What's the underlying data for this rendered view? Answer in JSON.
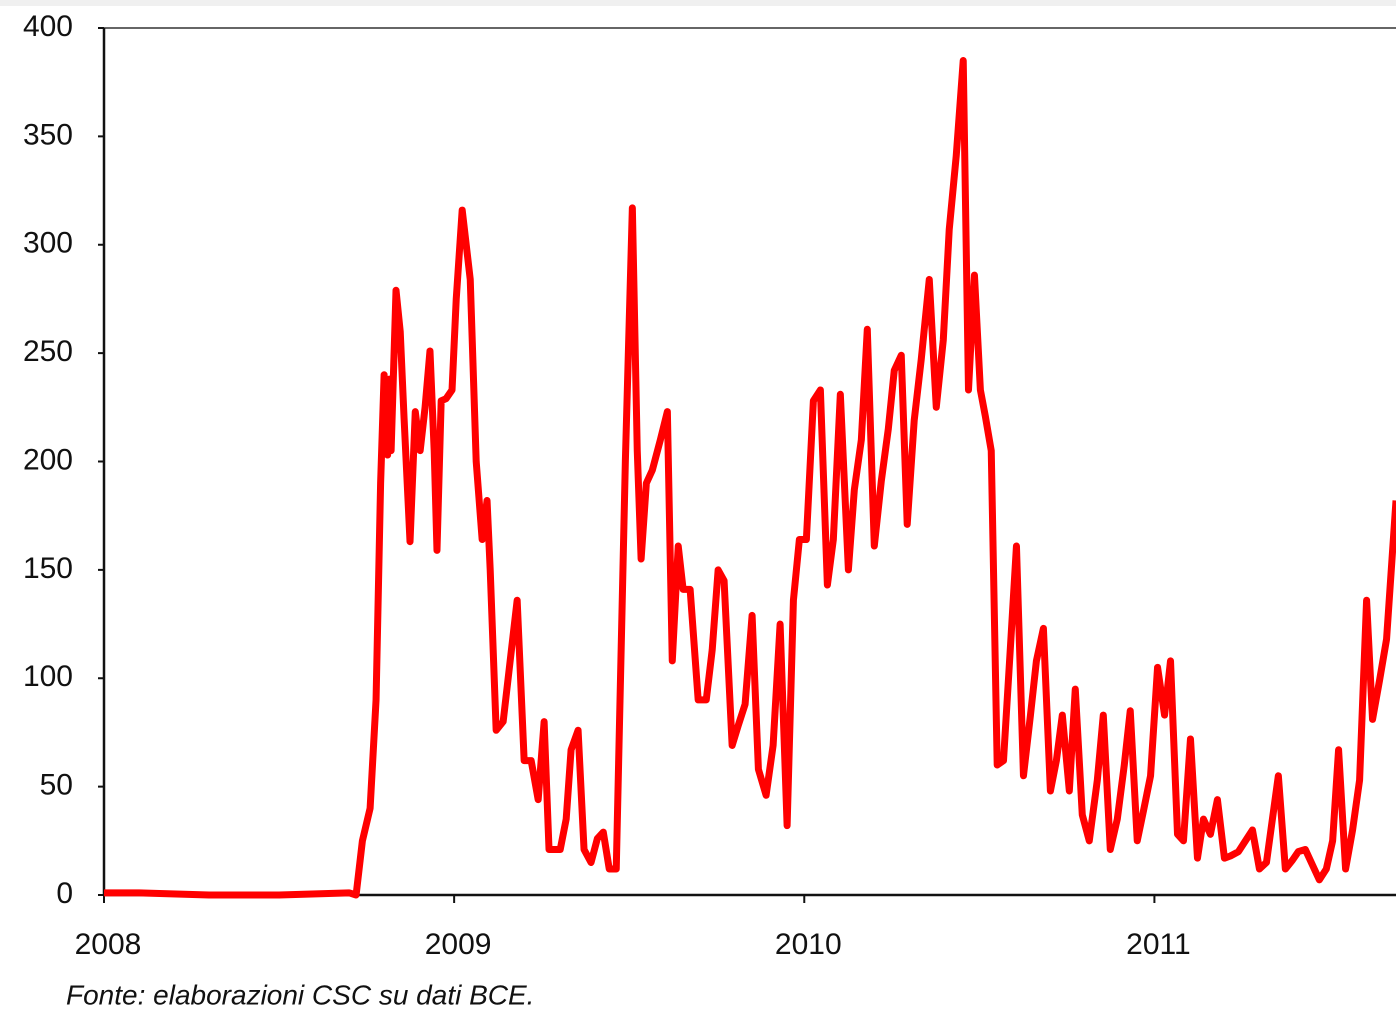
{
  "chart_data": {
    "type": "line",
    "source": "Fonte: elaborazioni CSC su dati BCE.",
    "x": [
      2008.0,
      2008.1,
      2008.3,
      2008.5,
      2008.7,
      2008.72,
      2008.738,
      2008.76,
      2008.777,
      2008.79,
      2008.8,
      2008.81,
      2008.815,
      2008.82,
      2008.834,
      2008.846,
      2008.857,
      2008.874,
      2008.889,
      2008.903,
      2008.917,
      2008.931,
      2008.943,
      2008.951,
      2008.963,
      2008.977,
      2008.994,
      2009.006,
      2009.023,
      2009.046,
      2009.063,
      2009.08,
      2009.094,
      2009.103,
      2009.12,
      2009.14,
      2009.16,
      2009.18,
      2009.2,
      2009.22,
      2009.24,
      2009.257,
      2009.271,
      2009.303,
      2009.32,
      2009.334,
      2009.354,
      2009.371,
      2009.391,
      2009.409,
      2009.426,
      2009.443,
      2009.463,
      2009.489,
      2009.509,
      2009.523,
      2009.534,
      2009.549,
      2009.566,
      2009.589,
      2009.609,
      2009.623,
      2009.64,
      2009.654,
      2009.674,
      2009.697,
      2009.72,
      2009.737,
      2009.754,
      2009.771,
      2009.794,
      2009.811,
      2009.831,
      2009.851,
      2009.869,
      2009.891,
      2009.911,
      2009.931,
      2009.951,
      2009.969,
      2009.986,
      2010.006,
      2010.026,
      2010.046,
      2010.066,
      2010.083,
      2010.103,
      2010.126,
      2010.143,
      2010.163,
      2010.18,
      2010.2,
      2010.22,
      2010.24,
      2010.257,
      2010.277,
      2010.294,
      2010.314,
      2010.334,
      2010.357,
      2010.377,
      2010.397,
      2010.414,
      2010.434,
      2010.454,
      2010.469,
      2010.486,
      2010.503,
      2010.517,
      2010.534,
      2010.551,
      2010.569,
      2010.589,
      2010.606,
      2010.626,
      2010.646,
      2010.663,
      2010.683,
      2010.703,
      2010.72,
      2010.737,
      2010.757,
      2010.774,
      2010.794,
      2010.814,
      2010.837,
      2010.854,
      2010.874,
      2010.894,
      2010.914,
      2010.931,
      2010.951,
      2010.969,
      2010.989,
      2011.009,
      2011.029,
      2011.046,
      2011.066,
      2011.083,
      2011.103,
      2011.123,
      2011.14,
      2011.16,
      2011.18,
      2011.2,
      2011.217,
      2011.24,
      2011.26,
      2011.28,
      2011.3,
      2011.32,
      2011.337,
      2011.354,
      2011.374,
      2011.394,
      2011.411,
      2011.431,
      2011.451,
      2011.471,
      2011.491,
      2011.509,
      2011.526,
      2011.546,
      2011.566,
      2011.586,
      2011.606,
      2011.623,
      2011.643,
      2011.663,
      2011.69
    ],
    "series": [
      {
        "name": "series",
        "color": "#ff0000",
        "values": [
          1,
          1,
          0,
          0,
          1,
          0,
          25,
          40,
          90,
          190,
          240,
          203,
          238,
          205,
          279,
          260,
          220,
          163,
          223,
          205,
          225,
          251,
          205,
          159,
          228,
          229,
          233,
          275,
          316,
          284,
          200,
          164,
          182,
          150,
          76,
          80,
          108,
          136,
          62,
          62,
          44,
          80,
          21,
          21,
          35,
          67,
          76,
          21,
          15,
          26,
          29,
          12,
          12,
          200,
          317,
          205,
          155,
          190,
          196,
          210,
          223,
          108,
          161,
          141,
          141,
          90,
          90,
          113,
          150,
          145,
          69,
          78,
          88,
          129,
          58,
          46,
          69,
          125,
          32,
          136,
          164,
          164,
          228,
          233,
          143,
          164,
          231,
          150,
          187,
          210,
          261,
          161,
          191,
          215,
          242,
          249,
          171,
          219,
          247,
          284,
          225,
          256,
          307,
          341,
          385,
          233,
          286,
          233,
          221,
          205,
          60,
          62,
          115,
          161,
          55,
          83,
          108,
          123,
          48,
          62,
          83,
          48,
          95,
          37,
          25,
          53,
          83,
          21,
          35,
          60,
          85,
          25,
          39,
          55,
          105,
          83,
          108,
          28,
          25,
          72,
          17,
          35,
          28,
          44,
          17,
          18,
          20,
          25,
          30,
          12,
          15,
          35,
          55,
          12,
          16,
          20,
          21,
          14,
          7,
          12,
          25,
          67,
          12,
          30,
          53,
          136,
          81,
          99,
          118,
          182
        ]
      }
    ],
    "xlim": [
      2008,
      2011.69
    ],
    "xticks": [
      2008,
      2009,
      2010,
      2011
    ],
    "ylim": [
      0,
      400
    ],
    "yticks": [
      0,
      50,
      100,
      150,
      200,
      250,
      300,
      350,
      400
    ]
  }
}
